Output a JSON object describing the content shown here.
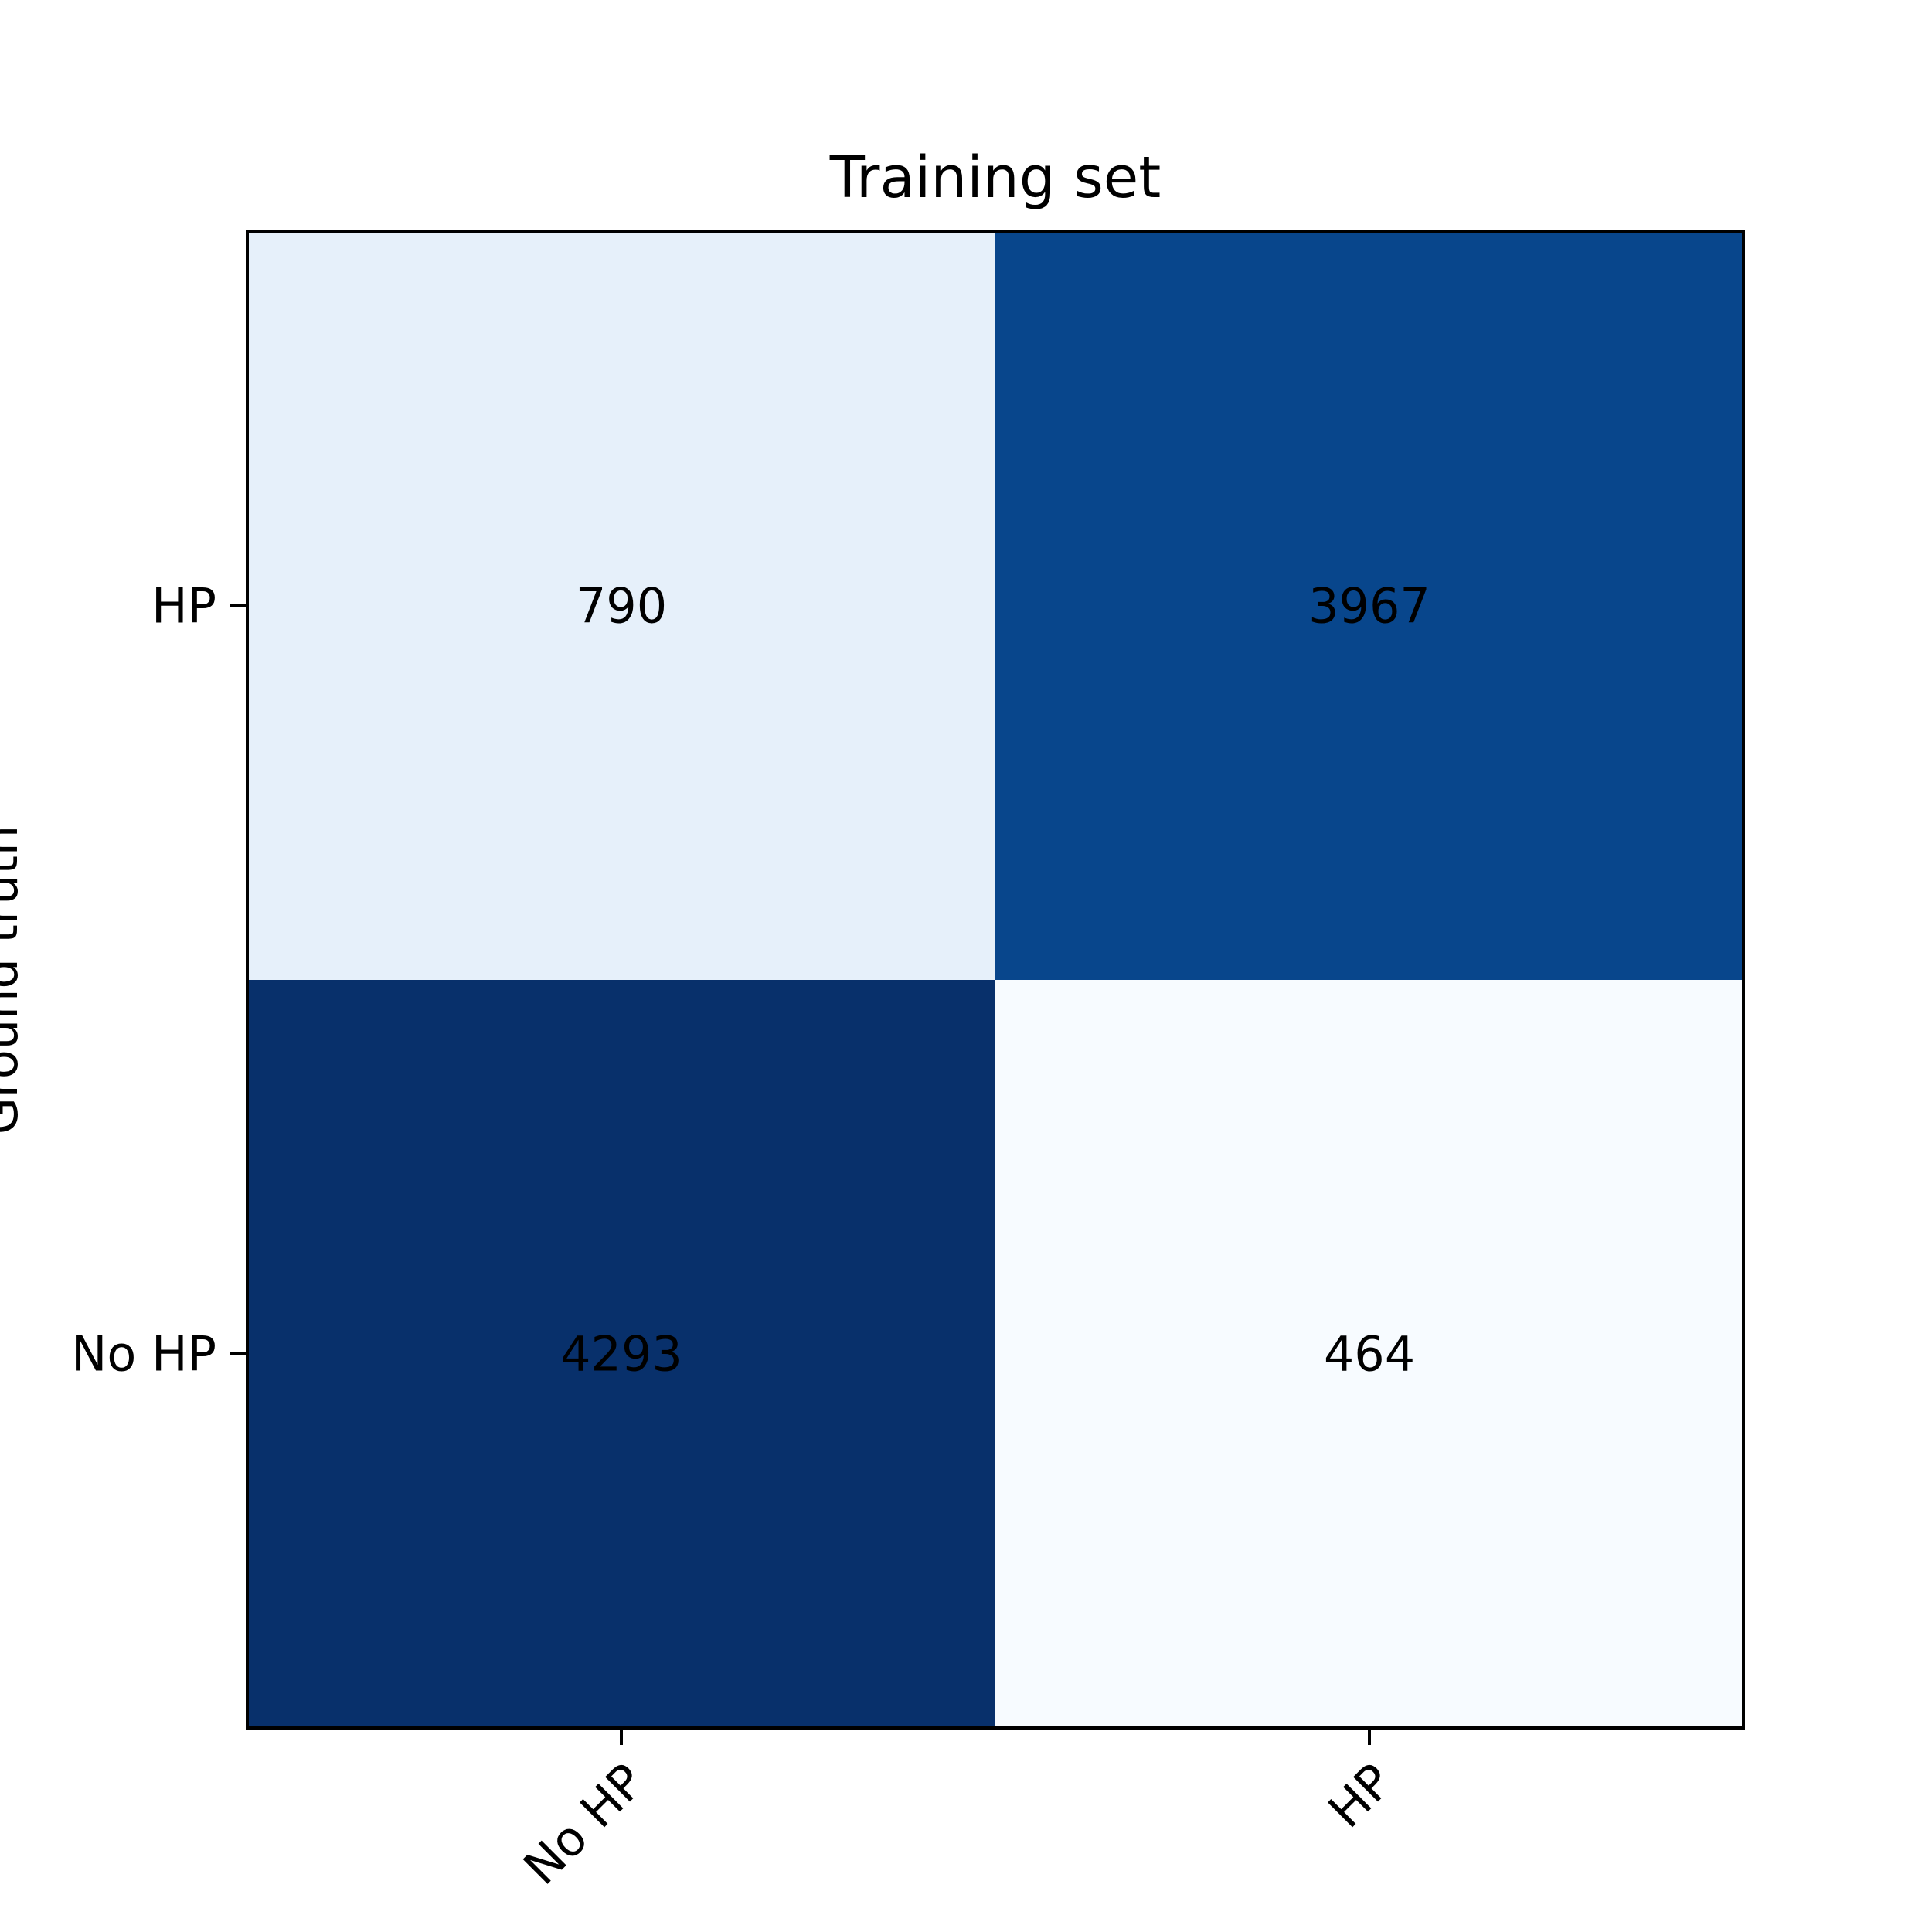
{
  "chart_data": {
    "type": "heatmap",
    "title": "Training set",
    "xlabel": "",
    "ylabel": "Ground truth",
    "x_categories": [
      "No HP",
      "HP"
    ],
    "y_categories_top_to_bottom": [
      "HP",
      "No HP"
    ],
    "values_top_to_bottom": [
      [
        790,
        3967
      ],
      [
        4293,
        464
      ]
    ],
    "colormap": "Blues",
    "colors": {
      "low": "#f7fbff",
      "mid_low": "#e6f0f9",
      "mid_high": "#0a4589",
      "high": "#08306b",
      "text": "#000000",
      "frame": "#000000"
    },
    "grid": false,
    "legend": "none"
  }
}
